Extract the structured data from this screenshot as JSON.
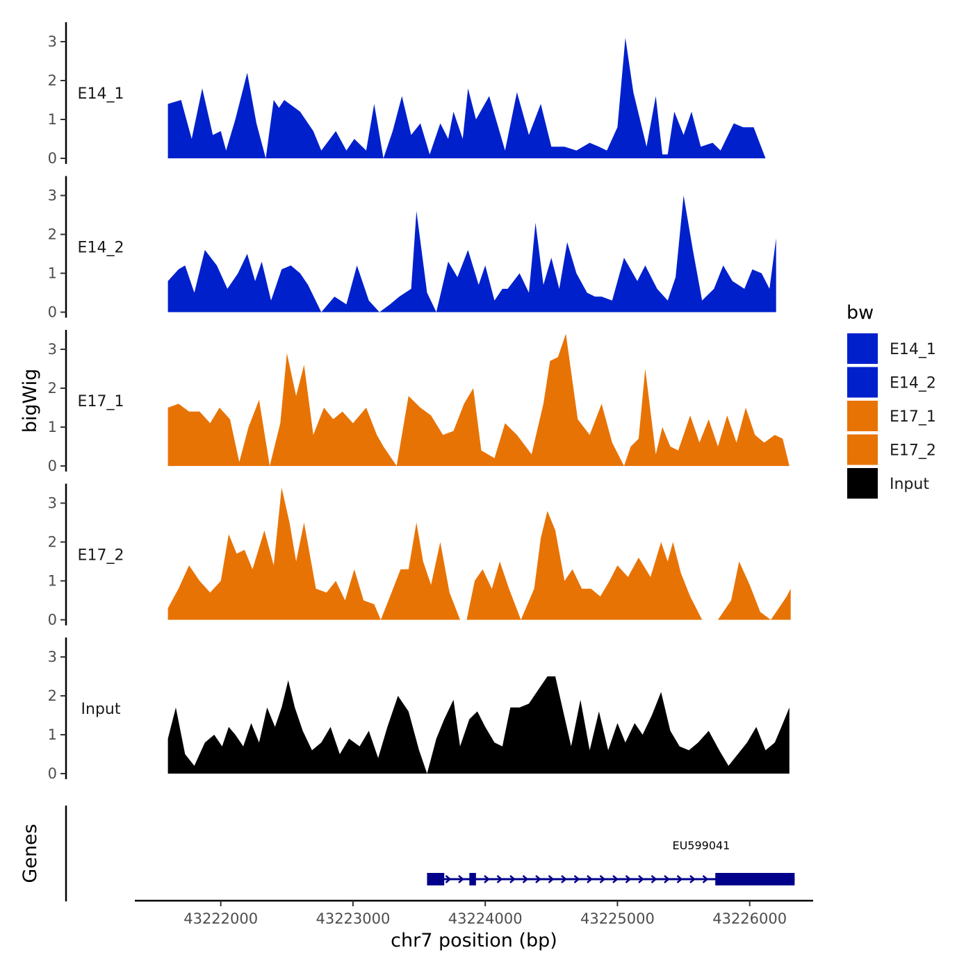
{
  "chart_data": {
    "type": "area",
    "title": "",
    "xlabel": "chr7 position (bp)",
    "ylabel": "bigWig",
    "genes_label": "Genes",
    "xlim": [
      43221350,
      43226480
    ],
    "ylim": [
      0,
      3.5
    ],
    "x_ticks": [
      43222000,
      43223000,
      43224000,
      43225000,
      43226000
    ],
    "x_tick_labels": [
      "43222000",
      "43223000",
      "43224000",
      "43225000",
      "43226000"
    ],
    "y_ticks": [
      0,
      1,
      2,
      3
    ],
    "y_tick_labels": [
      "0",
      "1",
      "2",
      "3"
    ],
    "legend": {
      "title": "bw",
      "position": "right",
      "entries": [
        {
          "label": "E14_1",
          "color": "#0020CC"
        },
        {
          "label": "E14_2",
          "color": "#0020CC"
        },
        {
          "label": "E17_1",
          "color": "#E87305"
        },
        {
          "label": "E17_2",
          "color": "#E87305"
        },
        {
          "label": "Input",
          "color": "#000000"
        }
      ]
    },
    "series": [
      {
        "name": "E14_1",
        "color": "#0020CC",
        "x": [
          43221600,
          43221700,
          43221780,
          43221860,
          43221940,
          43222000,
          43222040,
          43222110,
          43222200,
          43222270,
          43222340,
          43222400,
          43222440,
          43222480,
          43222600,
          43222700,
          43222760,
          43222870,
          43222950,
          43223010,
          43223100,
          43223160,
          43223230,
          43223300,
          43223370,
          43223440,
          43223510,
          43223580,
          43223660,
          43223720,
          43223760,
          43223830,
          43223870,
          43223930,
          43224030,
          43224150,
          43224240,
          43224330,
          43224420,
          43224500,
          43224600,
          43224690,
          43224790,
          43224860,
          43224920,
          43225000,
          43225060,
          43225120,
          43225220,
          43225290,
          43225340,
          43225380,
          43225430,
          43225500,
          43225560,
          43225630,
          43225720,
          43225780,
          43225880,
          43225950,
          43226030,
          43226120,
          43226190,
          43226250,
          43226300
        ],
        "values": [
          1.4,
          1.5,
          0.5,
          1.8,
          0.6,
          0.7,
          0.2,
          1.0,
          2.2,
          0.9,
          0.0,
          1.5,
          1.3,
          1.5,
          1.2,
          0.7,
          0.2,
          0.7,
          0.2,
          0.5,
          0.2,
          1.4,
          0.0,
          0.7,
          1.6,
          0.6,
          0.9,
          0.1,
          0.9,
          0.5,
          1.2,
          0.5,
          1.8,
          1.0,
          1.6,
          0.2,
          1.7,
          0.6,
          1.4,
          0.3,
          0.3,
          0.2,
          0.4,
          0.3,
          0.2,
          0.8,
          3.1,
          1.7,
          0.3,
          1.6,
          0.1,
          0.1,
          1.2,
          0.6,
          1.2,
          0.3,
          0.4,
          0.2,
          0.9,
          0.8,
          0.8,
          0.0,
          0.0,
          0.0,
          0.0
        ]
      },
      {
        "name": "E14_2",
        "color": "#0020CC",
        "x": [
          43221600,
          43221680,
          43221730,
          43221800,
          43221880,
          43221970,
          43222050,
          43222130,
          43222200,
          43222260,
          43222310,
          43222380,
          43222460,
          43222530,
          43222600,
          43222660,
          43222760,
          43222860,
          43222950,
          43223030,
          43223120,
          43223200,
          43223280,
          43223350,
          43223440,
          43223480,
          43223560,
          43223630,
          43223720,
          43223790,
          43223870,
          43223950,
          43224000,
          43224070,
          43224130,
          43224170,
          43224260,
          43224330,
          43224380,
          43224440,
          43224500,
          43224560,
          43224620,
          43224690,
          43224770,
          43224830,
          43224880,
          43224960,
          43225050,
          43225150,
          43225210,
          43225300,
          43225380,
          43225440,
          43225500,
          43225570,
          43225640,
          43225730,
          43225800,
          43225870,
          43225960,
          43226020,
          43226090,
          43226150,
          43226200
        ],
        "values": [
          0.8,
          1.1,
          1.2,
          0.5,
          1.6,
          1.2,
          0.6,
          1.0,
          1.5,
          0.8,
          1.3,
          0.3,
          1.1,
          1.2,
          1.0,
          0.7,
          0.0,
          0.4,
          0.2,
          1.2,
          0.3,
          0.0,
          0.2,
          0.4,
          0.6,
          2.6,
          0.5,
          0.0,
          1.3,
          0.9,
          1.6,
          0.7,
          1.2,
          0.3,
          0.6,
          0.6,
          1.0,
          0.5,
          2.3,
          0.7,
          1.4,
          0.6,
          1.8,
          1.0,
          0.5,
          0.4,
          0.4,
          0.3,
          1.4,
          0.8,
          1.2,
          0.6,
          0.3,
          0.9,
          3.0,
          1.6,
          0.3,
          0.6,
          1.2,
          0.8,
          0.6,
          1.1,
          1.0,
          0.6,
          1.9
        ]
      },
      {
        "name": "E17_1",
        "color": "#E87305",
        "x": [
          43221600,
          43221680,
          43221760,
          43221840,
          43221920,
          43221990,
          43222070,
          43222140,
          43222210,
          43222290,
          43222370,
          43222450,
          43222500,
          43222570,
          43222630,
          43222700,
          43222780,
          43222850,
          43222920,
          43223000,
          43223100,
          43223180,
          43223230,
          43223330,
          43223420,
          43223510,
          43223590,
          43223680,
          43223760,
          43223840,
          43223910,
          43223970,
          43224070,
          43224150,
          43224240,
          43224350,
          43224440,
          43224490,
          43224550,
          43224610,
          43224700,
          43224790,
          43224880,
          43224960,
          43225050,
          43225100,
          43225160,
          43225210,
          43225290,
          43225340,
          43225400,
          43225460,
          43225550,
          43225620,
          43225690,
          43225760,
          43225830,
          43225900,
          43225970,
          43226040,
          43226110,
          43226190,
          43226250,
          43226300
        ],
        "values": [
          1.5,
          1.6,
          1.4,
          1.4,
          1.1,
          1.5,
          1.2,
          0.1,
          1.0,
          1.7,
          0.0,
          1.1,
          2.9,
          1.8,
          2.6,
          0.8,
          1.5,
          1.2,
          1.4,
          1.1,
          1.5,
          0.8,
          0.5,
          0.0,
          1.8,
          1.5,
          1.3,
          0.8,
          0.9,
          1.6,
          2.0,
          0.4,
          0.2,
          1.1,
          0.8,
          0.3,
          1.6,
          2.7,
          2.8,
          3.4,
          1.2,
          0.8,
          1.6,
          0.6,
          0.0,
          0.5,
          0.7,
          2.5,
          0.3,
          1.0,
          0.5,
          0.4,
          1.3,
          0.6,
          1.2,
          0.5,
          1.3,
          0.6,
          1.5,
          0.8,
          0.6,
          0.8,
          0.7,
          0.0
        ]
      },
      {
        "name": "E17_2",
        "color": "#E87305",
        "x": [
          43221600,
          43221680,
          43221760,
          43221840,
          43221920,
          43222000,
          43222060,
          43222120,
          43222180,
          43222240,
          43222330,
          43222400,
          43222460,
          43222520,
          43222570,
          43222630,
          43222720,
          43222800,
          43222870,
          43222940,
          43223010,
          43223080,
          43223160,
          43223210,
          43223280,
          43223360,
          43223420,
          43223480,
          43223530,
          43223590,
          43223660,
          43223730,
          43223810,
          43223860,
          43223920,
          43223980,
          43224050,
          43224110,
          43224180,
          43224270,
          43224370,
          43224420,
          43224470,
          43224530,
          43224600,
          43224660,
          43224730,
          43224800,
          43224870,
          43224940,
          43225000,
          43225080,
          43225160,
          43225250,
          43225330,
          43225380,
          43225420,
          43225480,
          43225550,
          43225640,
          43225760,
          43225860,
          43225920,
          43226000,
          43226080,
          43226160,
          43226220,
          43226280,
          43226310
        ],
        "values": [
          0.3,
          0.8,
          1.4,
          1.0,
          0.7,
          1.0,
          2.2,
          1.7,
          1.8,
          1.3,
          2.3,
          1.4,
          3.4,
          2.5,
          1.5,
          2.5,
          0.8,
          0.7,
          1.0,
          0.5,
          1.3,
          0.5,
          0.4,
          0.0,
          0.6,
          1.3,
          1.3,
          2.5,
          1.5,
          0.9,
          2.0,
          0.7,
          0.0,
          0.0,
          1.0,
          1.3,
          0.8,
          1.5,
          0.8,
          0.0,
          0.8,
          2.1,
          2.8,
          2.3,
          1.0,
          1.3,
          0.8,
          0.8,
          0.6,
          1.0,
          1.4,
          1.1,
          1.6,
          1.1,
          2.0,
          1.5,
          2.0,
          1.2,
          0.6,
          0.0,
          0.0,
          0.5,
          1.5,
          0.9,
          0.2,
          0.0,
          0.3,
          0.6,
          0.8
        ]
      },
      {
        "name": "Input",
        "color": "#000000",
        "x": [
          43221600,
          43221660,
          43221730,
          43221800,
          43221880,
          43221950,
          43222010,
          43222060,
          43222110,
          43222170,
          43222230,
          43222290,
          43222350,
          43222410,
          43222460,
          43222510,
          43222560,
          43222620,
          43222690,
          43222760,
          43222830,
          43222900,
          43222970,
          43223050,
          43223120,
          43223190,
          43223260,
          43223340,
          43223420,
          43223500,
          43223560,
          43223630,
          43223690,
          43223760,
          43223810,
          43223880,
          43223940,
          43224000,
          43224070,
          43224130,
          43224190,
          43224260,
          43224330,
          43224410,
          43224470,
          43224530,
          43224590,
          43224650,
          43224720,
          43224790,
          43224860,
          43224930,
          43225000,
          43225060,
          43225130,
          43225190,
          43225260,
          43225330,
          43225400,
          43225470,
          43225540,
          43225610,
          43225690,
          43225770,
          43225840,
          43225910,
          43225980,
          43226050,
          43226120,
          43226190,
          43226240,
          43226300
        ],
        "values": [
          0.9,
          1.7,
          0.5,
          0.2,
          0.8,
          1.0,
          0.7,
          1.2,
          1.0,
          0.7,
          1.3,
          0.8,
          1.7,
          1.2,
          1.7,
          2.4,
          1.7,
          1.1,
          0.6,
          0.8,
          1.2,
          0.5,
          0.9,
          0.7,
          1.1,
          0.4,
          1.2,
          2.0,
          1.6,
          0.6,
          0.0,
          0.9,
          1.4,
          1.9,
          0.7,
          1.4,
          1.6,
          1.2,
          0.8,
          0.7,
          1.7,
          1.7,
          1.8,
          2.2,
          2.5,
          2.5,
          1.6,
          0.7,
          1.9,
          0.6,
          1.6,
          0.6,
          1.3,
          0.8,
          1.3,
          1.0,
          1.5,
          2.1,
          1.1,
          0.7,
          0.6,
          0.8,
          1.1,
          0.6,
          0.2,
          0.5,
          0.8,
          1.2,
          0.6,
          0.8,
          1.2,
          1.7
        ]
      }
    ],
    "genes": [
      {
        "name": "EU599041",
        "start": 43223560,
        "end": 43226340,
        "strand": "+",
        "color": "#00008B",
        "exons": [
          [
            43223560,
            43223690
          ],
          [
            43223880,
            43223930
          ],
          [
            43225740,
            43226340
          ]
        ]
      }
    ]
  }
}
